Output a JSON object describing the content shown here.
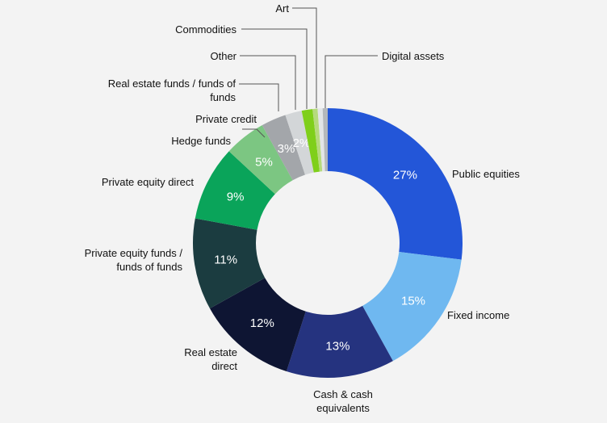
{
  "chart_data": {
    "type": "pie",
    "donut": true,
    "title": "",
    "slices": [
      {
        "label": "Public equities",
        "value": 27,
        "value_label": "27%",
        "color": "#2356d8"
      },
      {
        "label": "Fixed income",
        "value": 15,
        "value_label": "15%",
        "color": "#6fb8f0"
      },
      {
        "label": "Cash & cash equivalents",
        "value": 13,
        "value_label": "13%",
        "color": "#25337f"
      },
      {
        "label": "Real estate direct",
        "value": 12,
        "value_label": "12%",
        "color": "#0e1533"
      },
      {
        "label": "Private equity funds / funds of funds",
        "value": 11,
        "value_label": "11%",
        "color": "#1b3c40"
      },
      {
        "label": "Private equity direct",
        "value": 9,
        "value_label": "9%",
        "color": "#0aa45a"
      },
      {
        "label": "Hedge funds",
        "value": 5,
        "value_label": "5%",
        "color": "#7cc682"
      },
      {
        "label": "Private credit",
        "value": 3,
        "value_label": "3%",
        "color": "#a3a6aa"
      },
      {
        "label": "Real estate funds / funds of funds",
        "value": 2,
        "value_label": "2%",
        "color": "#d3d6d8"
      },
      {
        "label": "Other",
        "value": 1.3,
        "value_label": "",
        "color": "#7fcf1a"
      },
      {
        "label": "Commodities",
        "value": 0.6,
        "value_label": "",
        "color": "#b5da7c"
      },
      {
        "label": "Art",
        "value": 0.6,
        "value_label": "",
        "color": "#e2e5e7"
      },
      {
        "label": "Digital assets",
        "value": 0.6,
        "value_label": "",
        "color": "#b4b8bb"
      }
    ]
  }
}
